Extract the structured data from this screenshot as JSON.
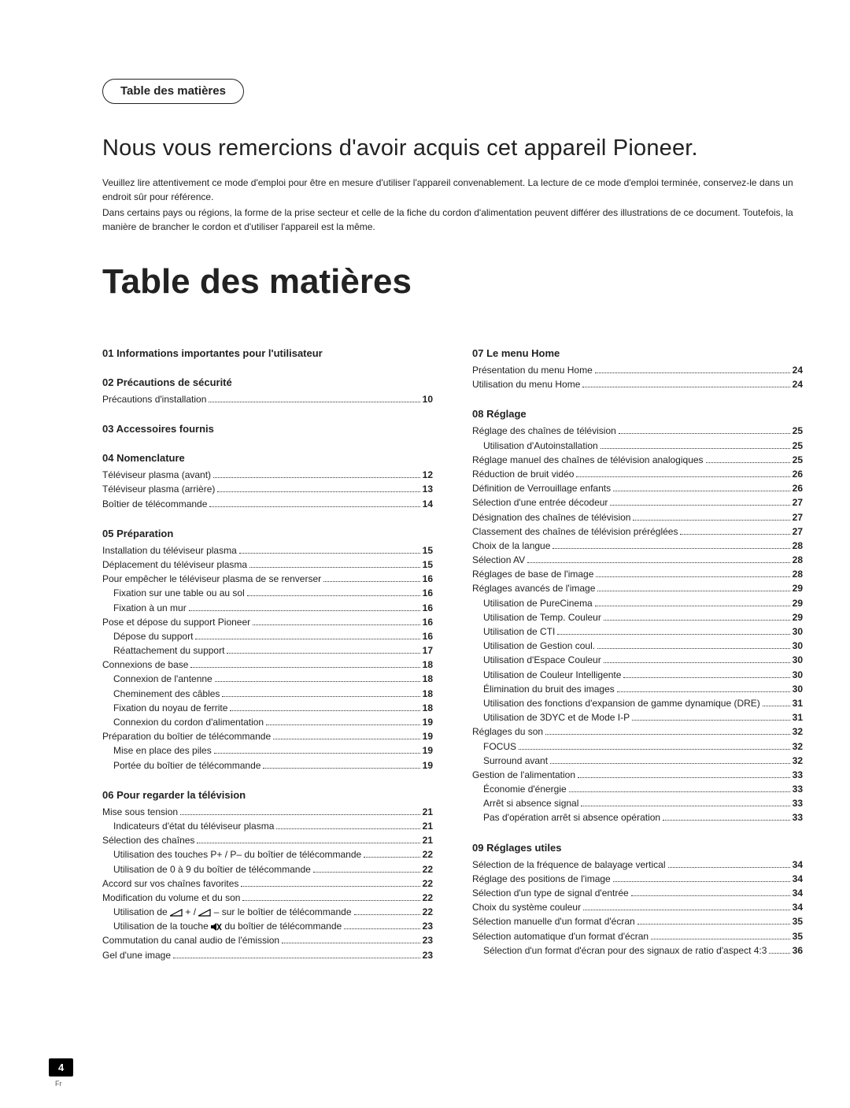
{
  "header_tab": "Table des matières",
  "intro_title": "Nous vous remercions d'avoir acquis cet appareil Pioneer.",
  "intro_paragraphs": [
    "Veuillez lire attentivement ce mode d'emploi pour être en mesure d'utiliser l'appareil convenablement. La lecture de ce mode d'emploi terminée, conservez-le dans un endroit sûr pour référence.",
    "Dans certains pays ou régions, la forme de la prise secteur et celle de la fiche du cordon d'alimentation peuvent différer des illustrations de ce document. Toutefois, la manière de brancher le cordon et d'utiliser l'appareil est la même."
  ],
  "big_title": "Table des matières",
  "left_sections": [
    {
      "title": "01 Informations importantes pour l'utilisateur",
      "items": []
    },
    {
      "title": "02 Précautions de sécurité",
      "items": [
        {
          "label": "Précautions d'installation",
          "page": "10",
          "indent": 0
        }
      ]
    },
    {
      "title": "03 Accessoires fournis",
      "items": []
    },
    {
      "title": "04 Nomenclature",
      "items": [
        {
          "label": "Téléviseur plasma (avant)",
          "page": "12",
          "indent": 0
        },
        {
          "label": "Téléviseur plasma (arrière)",
          "page": "13",
          "indent": 0
        },
        {
          "label": "Boîtier de télécommande",
          "page": "14",
          "indent": 0
        }
      ]
    },
    {
      "title": "05 Préparation",
      "items": [
        {
          "label": "Installation du téléviseur plasma",
          "page": "15",
          "indent": 0
        },
        {
          "label": "Déplacement du téléviseur plasma",
          "page": "15",
          "indent": 0
        },
        {
          "label": "Pour empêcher le téléviseur plasma de se renverser",
          "page": "16",
          "indent": 0
        },
        {
          "label": "Fixation sur une table ou au sol",
          "page": "16",
          "indent": 1
        },
        {
          "label": "Fixation à un mur",
          "page": "16",
          "indent": 1
        },
        {
          "label": "Pose et dépose du support Pioneer",
          "page": "16",
          "indent": 0
        },
        {
          "label": "Dépose du support",
          "page": "16",
          "indent": 1
        },
        {
          "label": "Réattachement du support",
          "page": "17",
          "indent": 1
        },
        {
          "label": "Connexions de base",
          "page": "18",
          "indent": 0
        },
        {
          "label": "Connexion de l'antenne",
          "page": "18",
          "indent": 1
        },
        {
          "label": "Cheminement des câbles",
          "page": "18",
          "indent": 1
        },
        {
          "label": "Fixation du noyau de ferrite",
          "page": "18",
          "indent": 1
        },
        {
          "label": "Connexion du cordon d'alimentation",
          "page": "19",
          "indent": 1
        },
        {
          "label": "Préparation du boîtier de télécommande",
          "page": "19",
          "indent": 0
        },
        {
          "label": "Mise en place des piles",
          "page": "19",
          "indent": 1
        },
        {
          "label": "Portée du boîtier de télécommande",
          "page": "19",
          "indent": 1
        }
      ]
    },
    {
      "title": "06 Pour regarder la télévision",
      "items": [
        {
          "label": "Mise sous tension",
          "page": "21",
          "indent": 0
        },
        {
          "label": "Indicateurs d'état du téléviseur plasma",
          "page": "21",
          "indent": 1
        },
        {
          "label": "Sélection des chaînes",
          "page": "21",
          "indent": 0
        },
        {
          "label": "Utilisation des touches  P+ / P–  du boîtier de télécommande",
          "page": "22",
          "indent": 1
        },
        {
          "label": "Utilisation de 0 à 9 du boîtier de télécommande",
          "page": "22",
          "indent": 1
        },
        {
          "label": "Accord sur vos chaînes favorites",
          "page": "22",
          "indent": 0
        },
        {
          "label": "Modification du volume et du son",
          "page": "22",
          "indent": 0
        },
        {
          "label": "__VOLICON__",
          "page": "22",
          "indent": 1
        },
        {
          "label": "__MUTEICON__",
          "page": "23",
          "indent": 1
        },
        {
          "label": "Commutation du canal audio de l'émission",
          "page": "23",
          "indent": 0
        },
        {
          "label": "Gel d'une image",
          "page": "23",
          "indent": 0
        }
      ]
    }
  ],
  "right_sections": [
    {
      "title": "07 Le menu Home",
      "items": [
        {
          "label": "Présentation du menu Home",
          "page": "24",
          "indent": 0
        },
        {
          "label": "Utilisation du menu Home",
          "page": "24",
          "indent": 0
        }
      ]
    },
    {
      "title": "08 Réglage",
      "items": [
        {
          "label": "Réglage des chaînes de télévision",
          "page": "25",
          "indent": 0
        },
        {
          "label": "Utilisation d'Autoinstallation",
          "page": "25",
          "indent": 1
        },
        {
          "label": "Réglage manuel des chaînes de télévision analogiques",
          "page": "25",
          "indent": 0
        },
        {
          "label": "Réduction de bruit vidéo",
          "page": "26",
          "indent": 0
        },
        {
          "label": "Définition de Verrouillage enfants",
          "page": "26",
          "indent": 0
        },
        {
          "label": "Sélection d'une entrée décodeur",
          "page": "27",
          "indent": 0
        },
        {
          "label": "Désignation des chaînes de télévision",
          "page": "27",
          "indent": 0
        },
        {
          "label": "Classement des chaînes de télévision préréglées",
          "page": "27",
          "indent": 0
        },
        {
          "label": "Choix de la langue",
          "page": "28",
          "indent": 0
        },
        {
          "label": "Sélection AV",
          "page": "28",
          "indent": 0
        },
        {
          "label": "Réglages de base de l'image",
          "page": "28",
          "indent": 0
        },
        {
          "label": "Réglages avancés de l'image",
          "page": "29",
          "indent": 0
        },
        {
          "label": "Utilisation de PureCinema",
          "page": "29",
          "indent": 1
        },
        {
          "label": "Utilisation de Temp. Couleur",
          "page": "29",
          "indent": 1
        },
        {
          "label": "Utilisation de CTI",
          "page": "30",
          "indent": 1
        },
        {
          "label": "Utilisation de Gestion coul.",
          "page": "30",
          "indent": 1
        },
        {
          "label": "Utilisation d'Espace Couleur",
          "page": "30",
          "indent": 1
        },
        {
          "label": "Utilisation de Couleur Intelligente",
          "page": "30",
          "indent": 1
        },
        {
          "label": "Élimination du bruit des images",
          "page": "30",
          "indent": 1
        },
        {
          "label": "Utilisation des fonctions d'expansion de gamme dynamique (DRE)",
          "page": "31",
          "indent": 1
        },
        {
          "label": "Utilisation de 3DYC et de Mode I-P",
          "page": "31",
          "indent": 1
        },
        {
          "label": "Réglages du son",
          "page": "32",
          "indent": 0
        },
        {
          "label": "FOCUS",
          "page": "32",
          "indent": 1
        },
        {
          "label": "Surround avant",
          "page": "32",
          "indent": 1
        },
        {
          "label": "Gestion de l'alimentation",
          "page": "33",
          "indent": 0
        },
        {
          "label": "Économie d'énergie",
          "page": "33",
          "indent": 1
        },
        {
          "label": "Arrêt si absence signal",
          "page": "33",
          "indent": 1
        },
        {
          "label": "Pas d'opération arrêt si absence opération",
          "page": "33",
          "indent": 1
        }
      ]
    },
    {
      "title": "09 Réglages utiles",
      "items": [
        {
          "label": "Sélection de la fréquence de balayage vertical",
          "page": "34",
          "indent": 0
        },
        {
          "label": "Réglage des positions de l'image",
          "page": "34",
          "indent": 0
        },
        {
          "label": "Sélection d'un type de signal d'entrée",
          "page": "34",
          "indent": 0
        },
        {
          "label": "Choix du système couleur",
          "page": "34",
          "indent": 0
        },
        {
          "label": "Sélection manuelle d'un format d'écran",
          "page": "35",
          "indent": 0
        },
        {
          "label": "Sélection automatique d'un format d'écran",
          "page": "35",
          "indent": 0
        },
        {
          "label": "Sélection d'un format d'écran pour des signaux de ratio d'aspect 4:3",
          "page": "36",
          "indent": 1
        }
      ]
    }
  ],
  "vol_line_prefix": "Utilisation de ",
  "vol_line_mid": " + / ",
  "vol_line_suffix": " – sur le boîtier de télécommande",
  "mute_line_prefix": "Utilisation de la touche ",
  "mute_line_suffix": " du boîtier de télécommande",
  "footer_page": "4",
  "footer_lang": "Fr"
}
